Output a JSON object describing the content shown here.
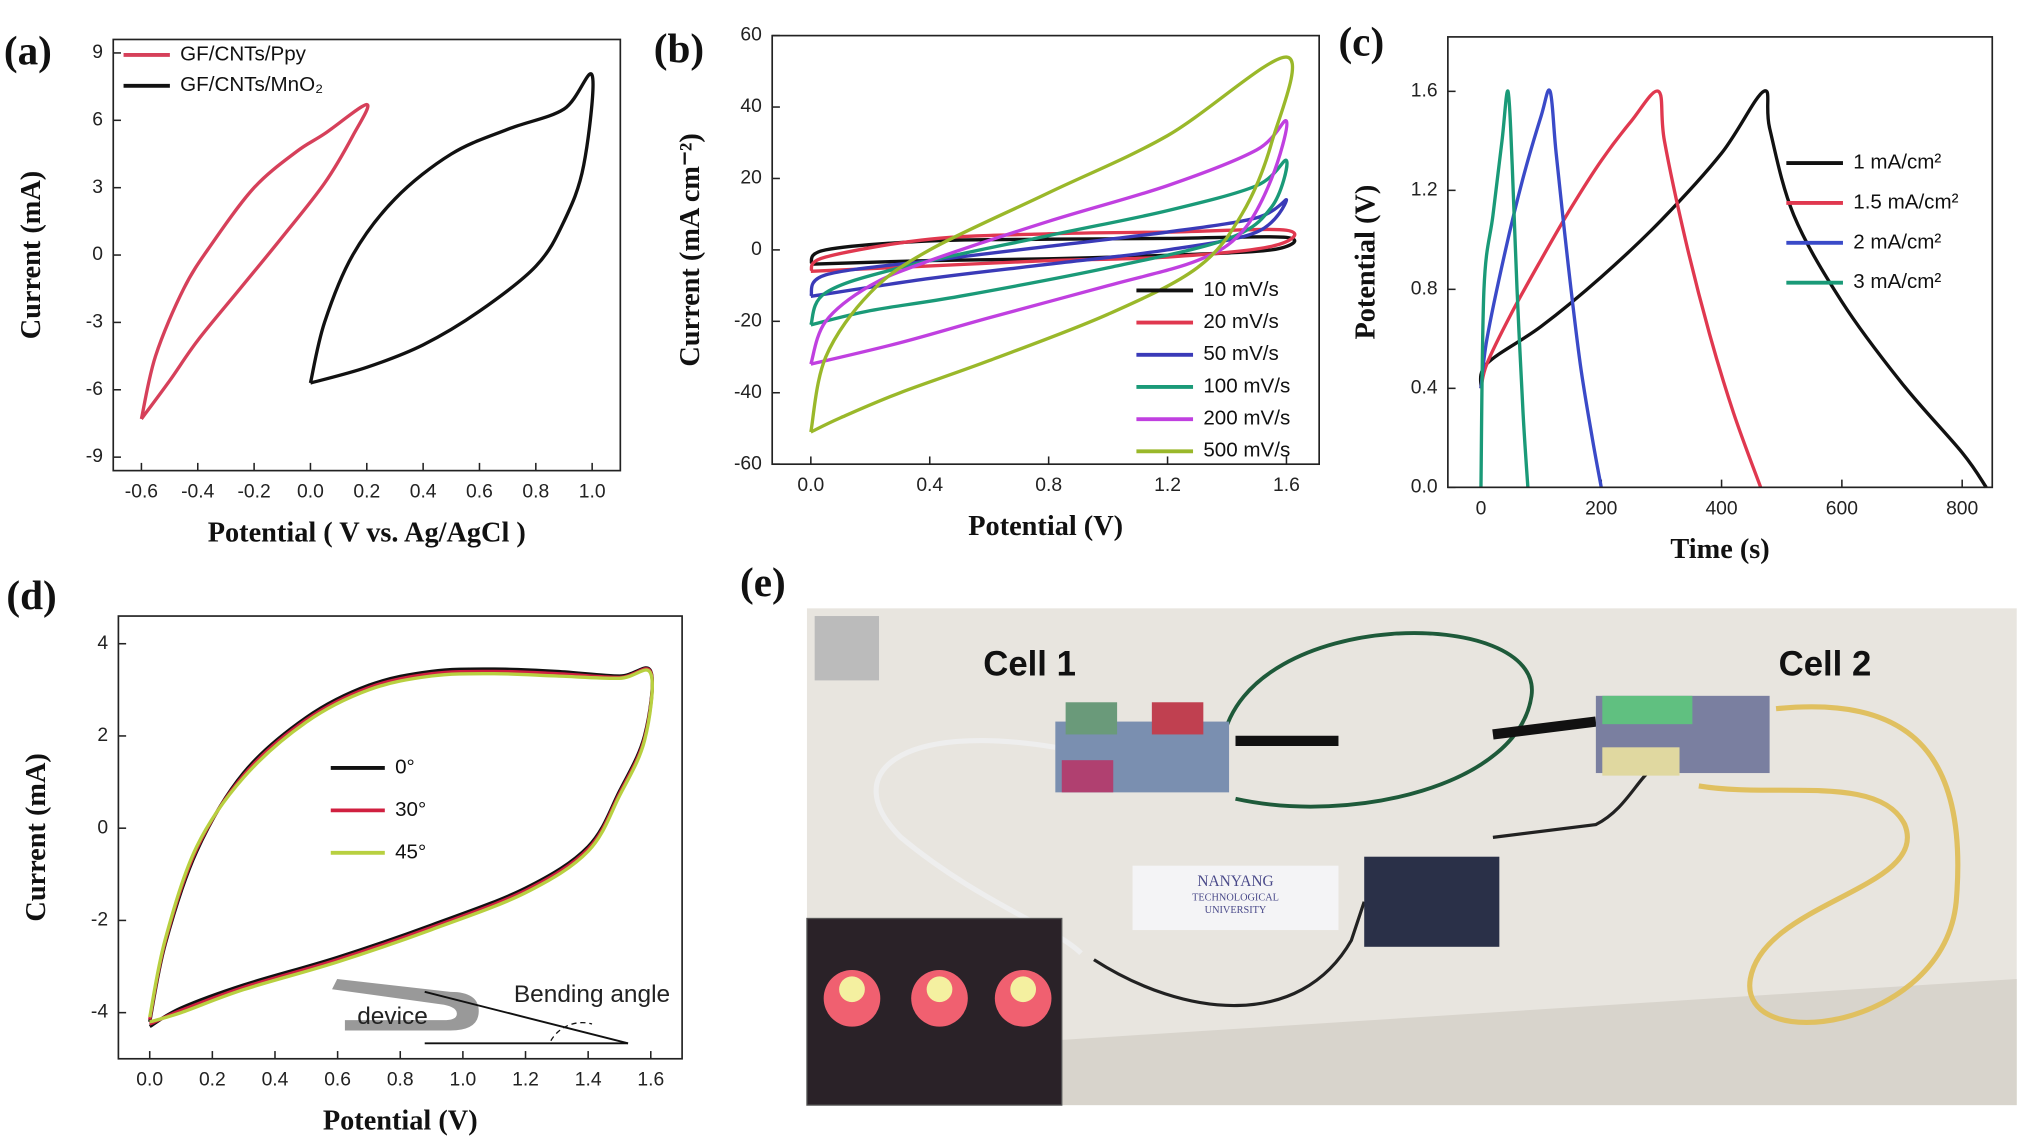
{
  "chart_data": [
    {
      "type": "line",
      "panel_label": "(a)",
      "xlabel": "Potential ( V vs. Ag/AgCl )",
      "ylabel": "Current (mA)",
      "xlim": [
        -0.7,
        1.1
      ],
      "ylim": [
        -9.6,
        9.6
      ],
      "xticks": [
        -0.6,
        -0.4,
        -0.2,
        {
          "value": 0,
          "label": "0.0"
        },
        0.2,
        0.4,
        0.6,
        0.8,
        {
          "value": 1,
          "label": "1.0"
        }
      ],
      "yticks": [
        9,
        6,
        3,
        0,
        -3,
        -6,
        -9
      ],
      "legend": "upper left",
      "series": [
        {
          "name": "GF/CNTs/Ppy",
          "color": "#d6405a",
          "x": [
            -0.6,
            -0.55,
            -0.45,
            -0.35,
            -0.2,
            -0.05,
            0.05,
            0.2,
            0.15,
            0.05,
            -0.1,
            -0.25,
            -0.4,
            -0.5,
            -0.6
          ],
          "values": [
            -7.3,
            -4.5,
            -1.5,
            0.5,
            3,
            4.6,
            5.4,
            6.7,
            5.3,
            3.2,
            0.8,
            -1.5,
            -3.8,
            -5.6,
            -7.3
          ]
        },
        {
          "name": "GF/CNTs/MnO₂",
          "color": "#111111",
          "x": [
            0,
            0.05,
            0.15,
            0.3,
            0.5,
            0.7,
            0.9,
            1.0,
            0.97,
            0.9,
            0.8,
            0.6,
            0.4,
            0.2,
            0
          ],
          "values": [
            -5.7,
            -3,
            0,
            2.5,
            4.5,
            5.6,
            6.5,
            8,
            4,
            1.5,
            -0.5,
            -2.5,
            -4,
            -5,
            -5.7
          ]
        }
      ]
    },
    {
      "type": "line",
      "panel_label": "(b)",
      "xlabel": "Potential (V)",
      "ylabel": "Current (mA cm⁻²)",
      "xlim": [
        -0.13,
        1.71
      ],
      "ylim": [
        -60,
        60
      ],
      "xticks": [
        {
          "value": 0,
          "label": "0.0"
        },
        0.4,
        0.8,
        1.2,
        1.6
      ],
      "yticks": [
        60,
        40,
        20,
        0,
        -20,
        -40,
        -60
      ],
      "legend": "lower right",
      "series": [
        {
          "name": "10 mV/s",
          "color": "#111111",
          "x": [
            0,
            0.05,
            0.4,
            0.8,
            1.2,
            1.6,
            1.55,
            1.2,
            0.8,
            0.4,
            0
          ],
          "values": [
            -4,
            0,
            2.5,
            3,
            3.2,
            3.5,
            0,
            -1.5,
            -2.5,
            -3,
            -4
          ]
        },
        {
          "name": "20 mV/s",
          "color": "#e0384f",
          "x": [
            0,
            0.05,
            0.4,
            0.8,
            1.2,
            1.6,
            1.55,
            1.2,
            0.8,
            0.4,
            0
          ],
          "values": [
            -6,
            -2,
            3,
            4.5,
            5,
            5.5,
            1,
            -2,
            -3,
            -4.5,
            -6
          ]
        },
        {
          "name": "50 mV/s",
          "color": "#3a3ab8",
          "x": [
            0,
            0.05,
            0.4,
            0.8,
            1.2,
            1.5,
            1.6,
            1.5,
            1.2,
            0.8,
            0.4,
            0
          ],
          "values": [
            -13,
            -7,
            -3,
            1,
            5,
            9,
            14,
            5,
            0,
            -4,
            -8,
            -13
          ]
        },
        {
          "name": "100 mV/s",
          "color": "#1a9a78",
          "x": [
            0,
            0.05,
            0.3,
            0.8,
            1.2,
            1.5,
            1.6,
            1.55,
            1.4,
            1.0,
            0.5,
            0.2,
            0
          ],
          "values": [
            -21,
            -12,
            -5,
            4,
            11,
            18,
            25,
            12,
            3,
            -5,
            -13,
            -17,
            -21
          ]
        },
        {
          "name": "200 mV/s",
          "color": "#c040e0",
          "x": [
            0,
            0.05,
            0.2,
            0.4,
            0.8,
            1.2,
            1.5,
            1.6,
            1.55,
            1.45,
            1.3,
            1.0,
            0.6,
            0.3,
            0
          ],
          "values": [
            -32,
            -20,
            -10,
            -3,
            8,
            18,
            28,
            36,
            20,
            5,
            -3,
            -10,
            -19,
            -26,
            -32
          ]
        },
        {
          "name": "500 mV/s",
          "color": "#9ab82a",
          "x": [
            0,
            0.05,
            0.2,
            0.4,
            0.8,
            1.2,
            1.6,
            1.55,
            1.45,
            1.3,
            1.0,
            0.6,
            0.3,
            0.1,
            0
          ],
          "values": [
            -51,
            -30,
            -12,
            0,
            16,
            32,
            54,
            30,
            10,
            -5,
            -18,
            -31,
            -40,
            -47,
            -51
          ]
        }
      ]
    },
    {
      "type": "line",
      "panel_label": "(c)",
      "xlabel": "Time (s)",
      "ylabel": "Potential (V)",
      "xlim": [
        -55,
        850
      ],
      "ylim": [
        0,
        1.82
      ],
      "xticks": [
        0,
        200,
        400,
        600,
        800
      ],
      "yticks": [
        {
          "value": 0,
          "label": "0.0"
        },
        0.4,
        0.8,
        1.2,
        1.6
      ],
      "legend": "right",
      "series": [
        {
          "name": "1 mA/cm²",
          "color": "#111111",
          "x": [
            0,
            10,
            100,
            200,
            300,
            400,
            470,
            480,
            520,
            600,
            700,
            800,
            840
          ],
          "values": [
            0.4,
            0.5,
            0.65,
            0.85,
            1.08,
            1.35,
            1.6,
            1.45,
            1.1,
            0.75,
            0.42,
            0.14,
            0
          ]
        },
        {
          "name": "1.5 mA/cm²",
          "color": "#e0384f",
          "x": [
            0,
            10,
            50,
            100,
            150,
            200,
            250,
            295,
            305,
            340,
            380,
            420,
            465
          ],
          "values": [
            0.4,
            0.5,
            0.7,
            0.92,
            1.13,
            1.32,
            1.48,
            1.6,
            1.4,
            1.0,
            0.62,
            0.3,
            0
          ]
        },
        {
          "name": "2 mA/cm²",
          "color": "#3a4ac8",
          "x": [
            0,
            10,
            40,
            70,
            100,
            115,
            125,
            145,
            165,
            185,
            200
          ],
          "values": [
            0.4,
            0.6,
            0.95,
            1.25,
            1.5,
            1.6,
            1.35,
            0.9,
            0.5,
            0.2,
            0
          ]
        },
        {
          "name": "3 mA/cm²",
          "color": "#1a9a78",
          "x": [
            0,
            5,
            20,
            35,
            45,
            52,
            60,
            70,
            78
          ],
          "values": [
            0,
            0.8,
            1.1,
            1.4,
            1.6,
            1.3,
            0.8,
            0.3,
            0
          ]
        }
      ]
    },
    {
      "type": "line",
      "panel_label": "(d)",
      "xlabel": "Potential (V)",
      "ylabel": "Current (mA)",
      "xlim": [
        -0.1,
        1.7
      ],
      "ylim": [
        -5,
        4.6
      ],
      "xticks": [
        {
          "value": 0,
          "label": "0.0"
        },
        0.2,
        0.4,
        0.6,
        0.8,
        {
          "value": 1,
          "label": "1.0"
        },
        1.2,
        1.4,
        1.6
      ],
      "yticks": [
        4,
        2,
        0,
        -2,
        -4
      ],
      "legend": "center left",
      "annotations": [
        "device",
        "Bending angle"
      ],
      "series": [
        {
          "name": "0°",
          "color": "#111111",
          "x": [
            0,
            0.05,
            0.15,
            0.3,
            0.5,
            0.7,
            0.9,
            1.1,
            1.3,
            1.5,
            1.6,
            1.58,
            1.5,
            1.4,
            1.2,
            0.9,
            0.6,
            0.3,
            0.1,
            0
          ],
          "values": [
            -4.2,
            -2.5,
            -0.5,
            1.2,
            2.4,
            3.1,
            3.4,
            3.45,
            3.4,
            3.3,
            3.4,
            2,
            0.8,
            -0.4,
            -1.3,
            -2.1,
            -2.8,
            -3.4,
            -3.9,
            -4.3
          ]
        },
        {
          "name": "30°",
          "color": "#d02040",
          "x": [
            0,
            0.05,
            0.15,
            0.3,
            0.5,
            0.7,
            0.9,
            1.1,
            1.3,
            1.5,
            1.6,
            1.58,
            1.5,
            1.4,
            1.2,
            0.9,
            0.6,
            0.3,
            0.1,
            0
          ],
          "values": [
            -4.15,
            -2.45,
            -0.45,
            1.15,
            2.35,
            3.05,
            3.35,
            3.4,
            3.35,
            3.27,
            3.38,
            1.95,
            0.75,
            -0.45,
            -1.35,
            -2.15,
            -2.85,
            -3.45,
            -3.95,
            -4.25
          ]
        },
        {
          "name": "45°",
          "color": "#b8d040",
          "x": [
            0,
            0.05,
            0.15,
            0.3,
            0.5,
            0.7,
            0.9,
            1.1,
            1.3,
            1.5,
            1.6,
            1.58,
            1.5,
            1.4,
            1.2,
            0.9,
            0.6,
            0.3,
            0.1,
            0
          ],
          "values": [
            -4.1,
            -2.4,
            -0.4,
            1.1,
            2.3,
            3.0,
            3.3,
            3.35,
            3.3,
            3.25,
            3.35,
            1.9,
            0.7,
            -0.5,
            -1.4,
            -2.2,
            -2.9,
            -3.5,
            -4.0,
            -4.2
          ]
        }
      ]
    }
  ],
  "photo": {
    "panel_label": "(e)",
    "cells": [
      "Cell 1",
      "Cell 2"
    ],
    "logo": [
      "NANYANG",
      "TECHNOLOGICAL",
      "UNIVERSITY"
    ]
  }
}
